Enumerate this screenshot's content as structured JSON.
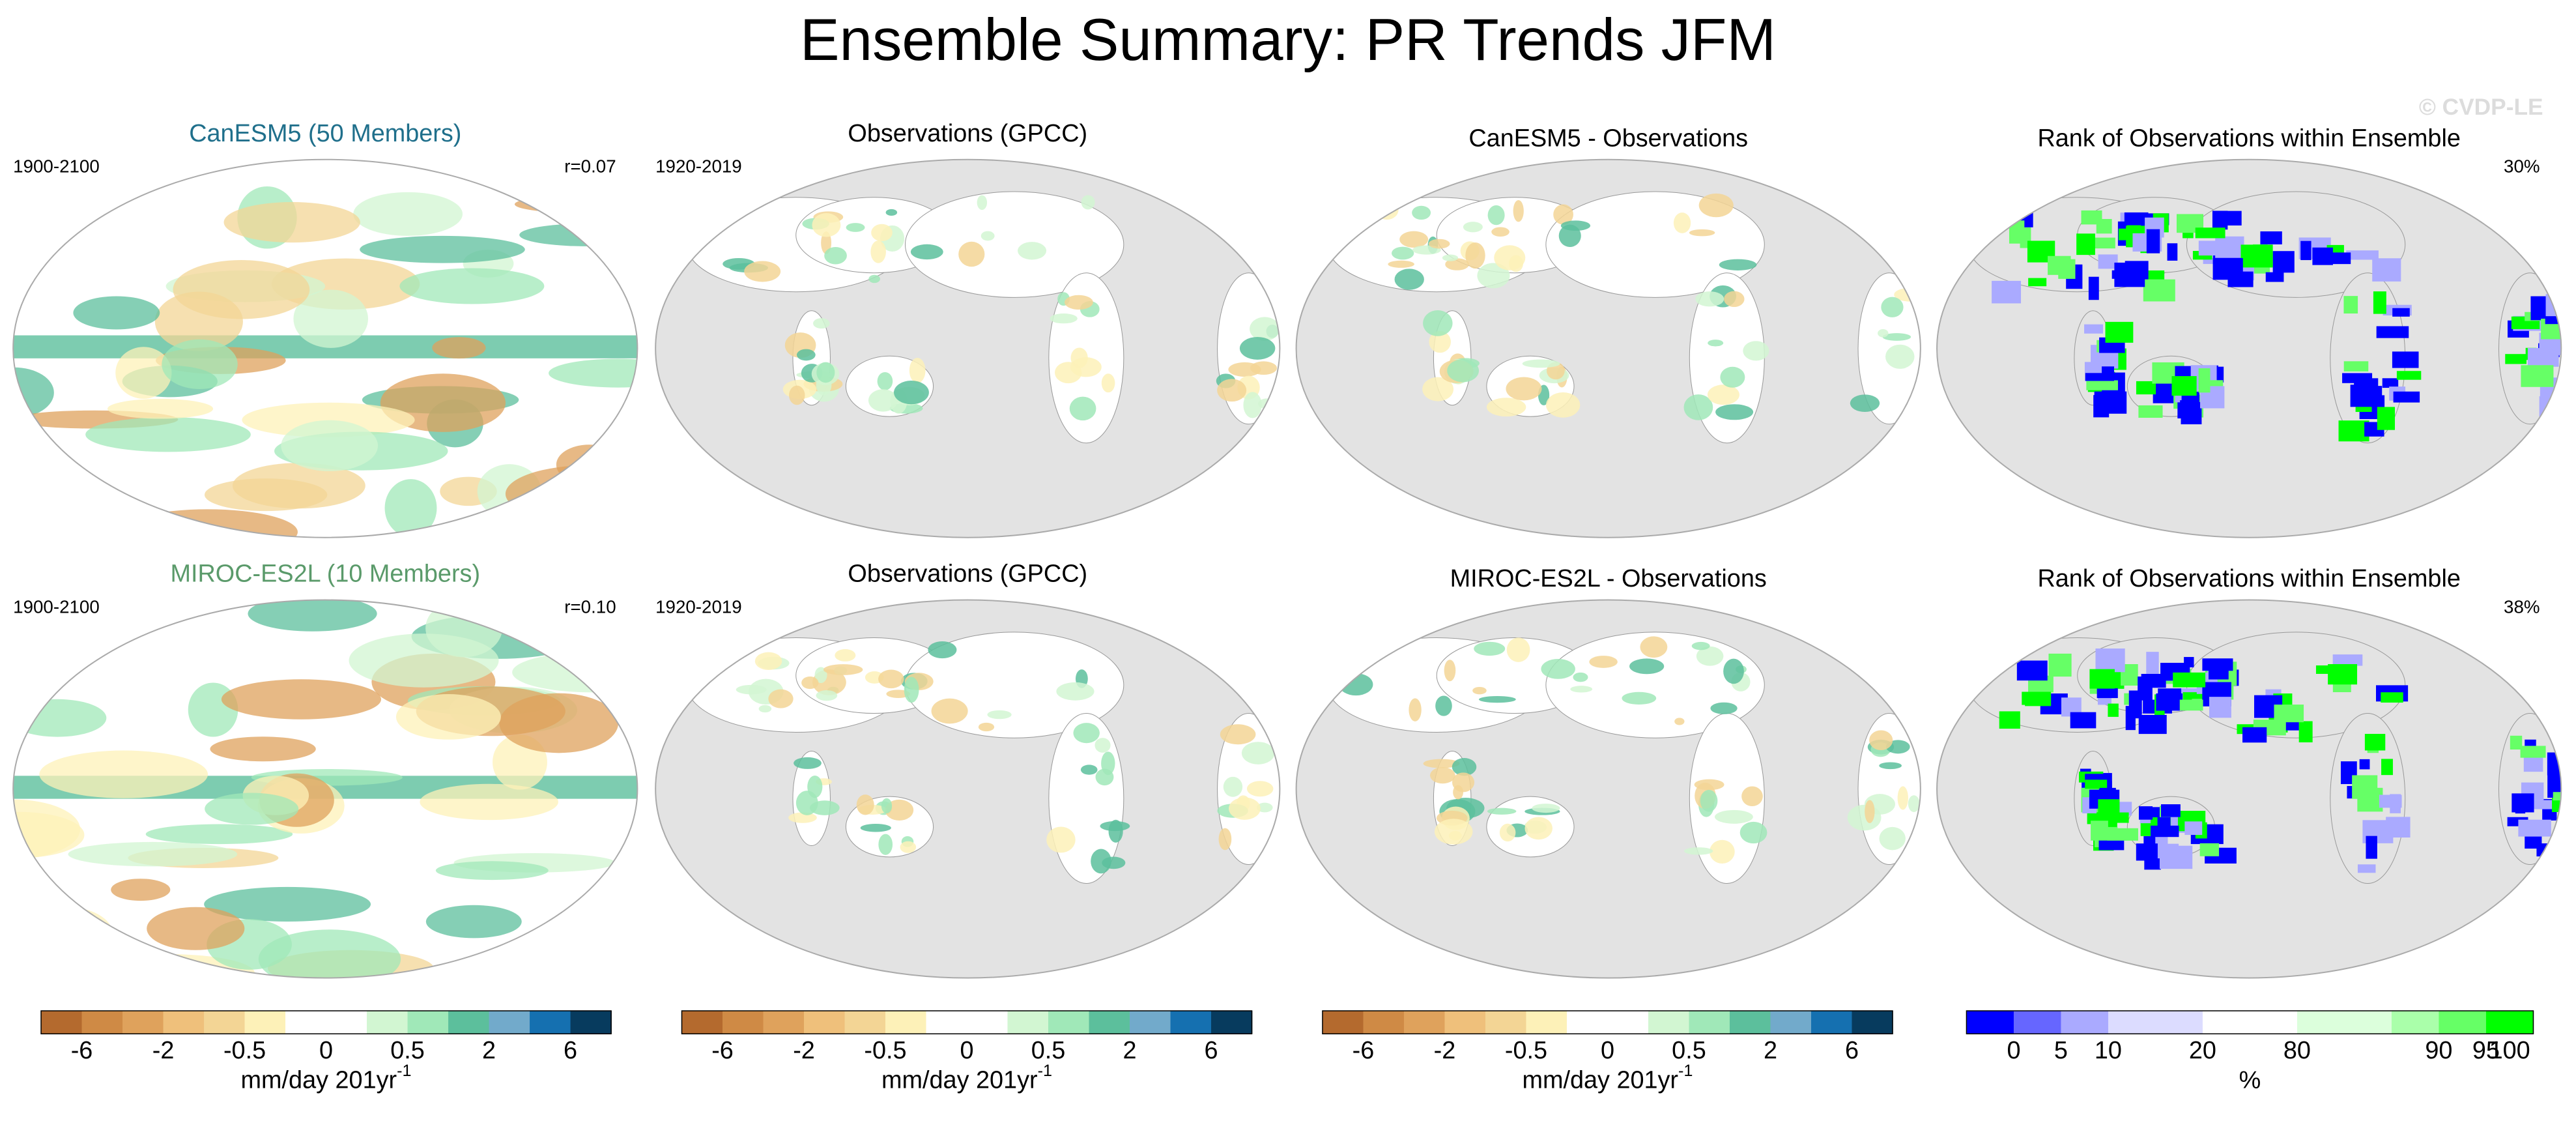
{
  "figure": {
    "title": "Ensemble Summary: PR Trends JFM",
    "watermark": "© CVDP-LE",
    "panels": [
      {
        "title": "CanESM5 (50 Members)",
        "title_color": "#1f6f8b",
        "left_label": "1900-2100",
        "right_label": "r=0.07"
      },
      {
        "title": "Observations (GPCC)",
        "left_label": "1920-2019"
      },
      {
        "title": "CanESM5 - Observations"
      },
      {
        "title": "Rank of Observations within Ensemble",
        "right_label": "30%"
      },
      {
        "title": "MIROC-ES2L (10 Members)",
        "title_color": "#5a9a6a",
        "left_label": "1900-2100",
        "right_label": "r=0.10"
      },
      {
        "title": "Observations (GPCC)",
        "left_label": "1920-2019"
      },
      {
        "title": "MIROC-ES2L - Observations"
      },
      {
        "title": "Rank of Observations within Ensemble",
        "right_label": "38%"
      }
    ],
    "colorbars": [
      {
        "colors": [
          "#b46a2e",
          "#cf8a45",
          "#dfa25c",
          "#efc07b",
          "#f3d595",
          "#fdf1b8",
          "#ffffff",
          "#ffffff",
          "#d2f6d2",
          "#a0e8b8",
          "#5cbf9c",
          "#72aacb",
          "#1570b0",
          "#073b5e"
        ],
        "ticks": [
          -6,
          -2,
          -0.5,
          0,
          0.5,
          2,
          6
        ],
        "unit": "mm/day 201yr",
        "unit_exponent": "-1"
      },
      {
        "colors": [
          "#b46a2e",
          "#cf8a45",
          "#dfa25c",
          "#efc07b",
          "#f3d595",
          "#fdf1b8",
          "#ffffff",
          "#ffffff",
          "#d2f6d2",
          "#a0e8b8",
          "#5cbf9c",
          "#72aacb",
          "#1570b0",
          "#073b5e"
        ],
        "ticks": [
          -6,
          -2,
          -0.5,
          0,
          0.5,
          2,
          6
        ],
        "unit": "mm/day 201yr",
        "unit_exponent": "-1"
      },
      {
        "colors": [
          "#b46a2e",
          "#cf8a45",
          "#dfa25c",
          "#efc07b",
          "#f3d595",
          "#fdf1b8",
          "#ffffff",
          "#ffffff",
          "#d2f6d2",
          "#a0e8b8",
          "#5cbf9c",
          "#72aacb",
          "#1570b0",
          "#073b5e"
        ],
        "ticks": [
          -6,
          -2,
          -0.5,
          0,
          0.5,
          2,
          6
        ],
        "unit": "mm/day 201yr",
        "unit_exponent": "-1"
      },
      {
        "colors": [
          "#0000ff",
          "#6666ff",
          "#aaaaff",
          "#dcdcff",
          "#ffffff",
          "#dcffdc",
          "#aaffaa",
          "#66ff66",
          "#00ff00"
        ],
        "ticks": [
          0,
          5,
          10,
          20,
          80,
          90,
          95,
          100
        ],
        "unit": "%"
      }
    ]
  }
}
